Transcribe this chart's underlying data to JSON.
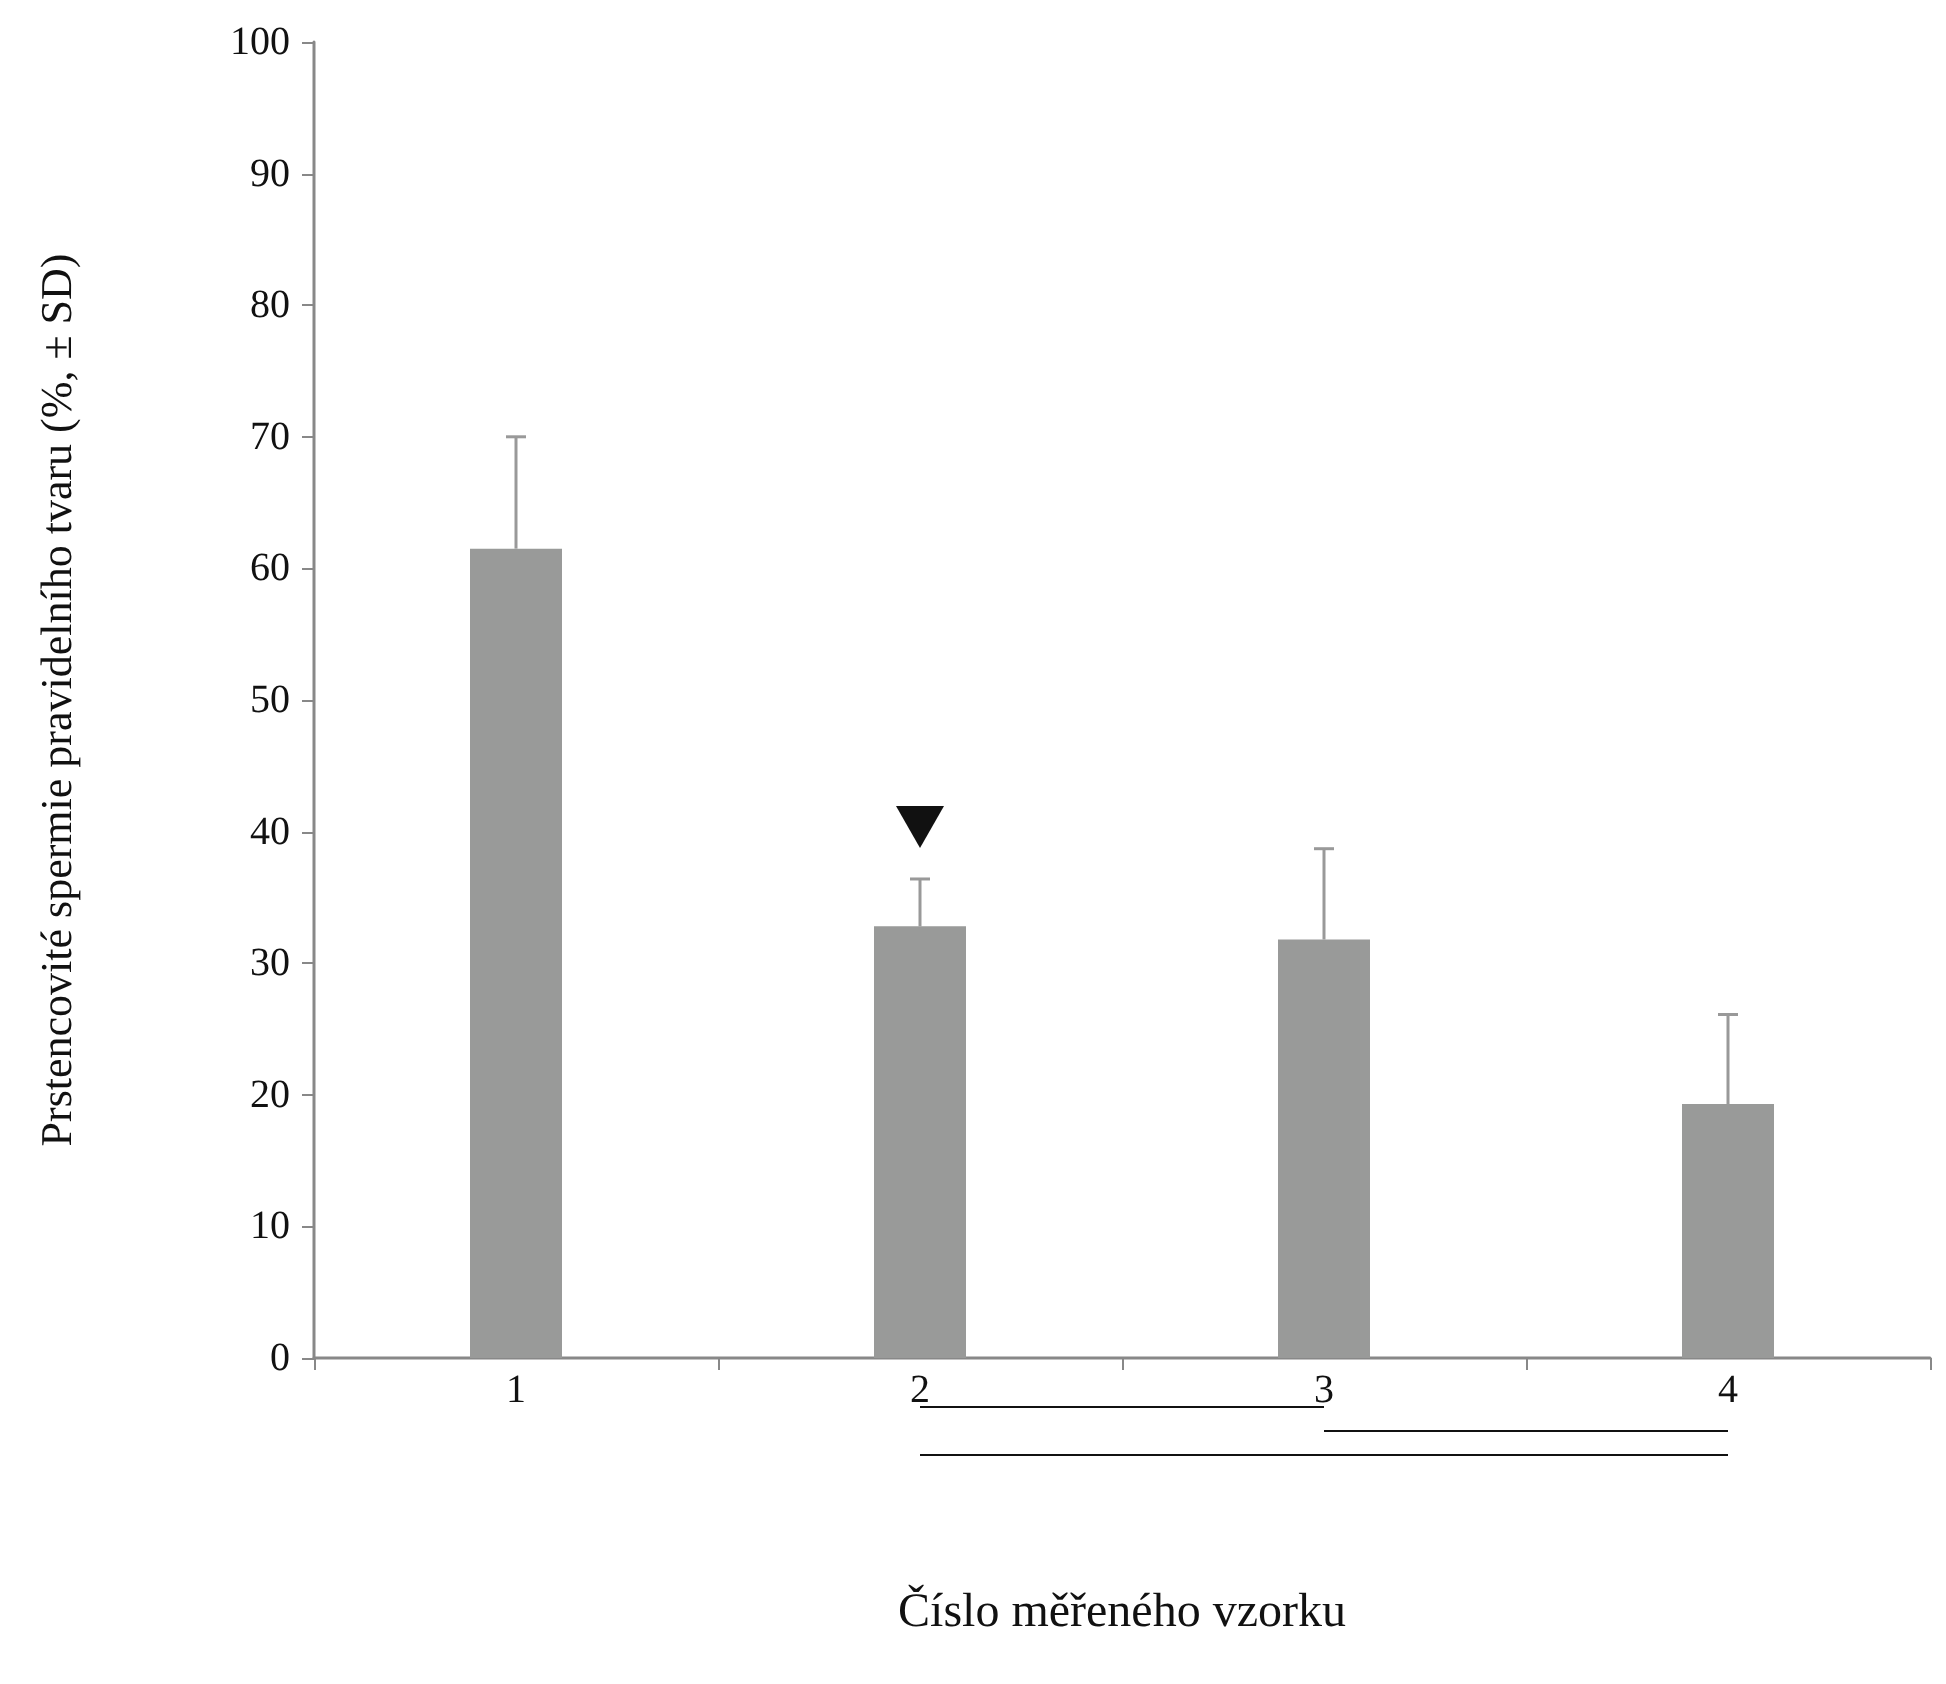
{
  "chart_data": {
    "type": "bar",
    "xlabel": "Číslo měřeného vzorku",
    "ylabel": "Prstencovité spermie pravidelního tvaru (%, ± SD)",
    "categories": [
      "1",
      "2",
      "3",
      "4"
    ],
    "values": [
      61.5,
      32.8,
      31.8,
      19.3
    ],
    "errors": [
      [
        61.5,
        70.0
      ],
      [
        32.8,
        36.4
      ],
      [
        31.8,
        38.7
      ],
      [
        19.3,
        26.1
      ]
    ],
    "color": "#999a99",
    "ylim": [
      0,
      100
    ],
    "yticks": [
      0,
      10,
      20,
      30,
      40,
      50,
      60,
      70,
      80,
      90,
      100
    ],
    "grid": false
  }
}
